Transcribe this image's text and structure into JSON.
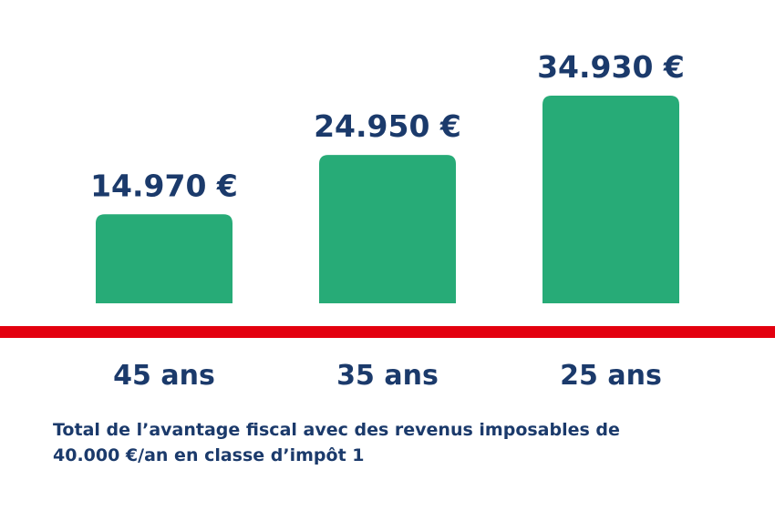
{
  "chart_data": {
    "type": "bar",
    "categories": [
      "45 ans",
      "35 ans",
      "25 ans"
    ],
    "values": [
      14970,
      24950,
      34930
    ],
    "value_labels": [
      "14.970 €",
      "24.950 €",
      "34.930 €"
    ],
    "ylim": [
      0,
      40000
    ],
    "grid": false,
    "legend": "none",
    "colors": {
      "bar": "#27ab77",
      "baseline": "#e3000f",
      "text": "#1b3a6b"
    }
  },
  "caption": {
    "line1": "Total de l’avantage fiscal avec des revenus imposables de",
    "line2": "40.000 €/an en classe d’impôt 1"
  }
}
